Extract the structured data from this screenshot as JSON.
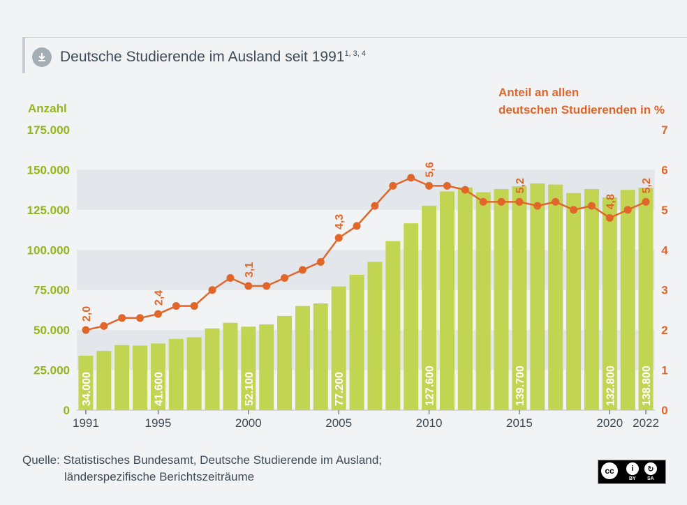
{
  "header": {
    "title": "Deutsche Studierende im Ausland seit 1991",
    "title_superscript": "1, 3, 4",
    "download_icon": "download-icon"
  },
  "chart_data": {
    "type": "bar+line",
    "left_axis_label": "Anzahl",
    "right_axis_label_line1": "Anteil an allen",
    "right_axis_label_line2": "deutschen Studierenden in %",
    "left_ticks": [
      "0",
      "25.000",
      "50.000",
      "75.000",
      "100.000",
      "125.000",
      "150.000",
      "175.000"
    ],
    "right_ticks": [
      "0",
      "1",
      "2",
      "3",
      "4",
      "5",
      "6",
      "7"
    ],
    "ylim_left": [
      0,
      175000
    ],
    "ylim_right": [
      0,
      7
    ],
    "x_tick_labels": [
      "1991",
      "1995",
      "2000",
      "2005",
      "2010",
      "2015",
      "2020",
      "2022"
    ],
    "years": [
      1991,
      1992,
      1993,
      1994,
      1995,
      1996,
      1997,
      1998,
      1999,
      2000,
      2001,
      2002,
      2003,
      2004,
      2005,
      2006,
      2007,
      2008,
      2009,
      2010,
      2011,
      2012,
      2013,
      2014,
      2015,
      2016,
      2017,
      2018,
      2019,
      2020,
      2021,
      2022
    ],
    "series": [
      {
        "name": "Anzahl",
        "color": "#c1d552",
        "values": [
          34000,
          37000,
          40600,
          40300,
          41600,
          44500,
          45500,
          51000,
          54500,
          52100,
          53500,
          58800,
          65000,
          66600,
          77200,
          84500,
          92500,
          105500,
          116600,
          127600,
          136500,
          139000,
          136000,
          138000,
          139700,
          141500,
          140800,
          135500,
          138000,
          132800,
          137500,
          138800
        ],
        "labels": {
          "1991": "34.000",
          "1995": "41.600",
          "2000": "52.100",
          "2005": "77.200",
          "2010": "127.600",
          "2015": "139.700",
          "2020": "132.800",
          "2022": "138.800"
        }
      },
      {
        "name": "Anteil in %",
        "color": "#e0662a",
        "values": [
          2.0,
          2.1,
          2.3,
          2.3,
          2.4,
          2.6,
          2.6,
          3.0,
          3.3,
          3.1,
          3.1,
          3.3,
          3.5,
          3.7,
          4.3,
          4.6,
          5.1,
          5.6,
          5.8,
          5.6,
          5.6,
          5.5,
          5.2,
          5.2,
          5.2,
          5.1,
          5.2,
          5.0,
          5.1,
          4.8,
          5.0,
          5.2
        ],
        "labels": {
          "1991": "2,0",
          "1995": "2,4",
          "2000": "3,1",
          "2005": "4,3",
          "2010": "5,6",
          "2015": "5,2",
          "2020": "4,8",
          "2022": "5,2"
        }
      }
    ],
    "grid": "alternating horizontal bands"
  },
  "source": {
    "line1": "Quelle: Statistisches Bundesamt, Deutsche Studierende im Ausland;",
    "line2": "länderspezifische Berichtszeiträume"
  },
  "license": {
    "badge": "cc-by-sa-badge",
    "cc": "cc",
    "by": "BY",
    "sa": "SA"
  }
}
